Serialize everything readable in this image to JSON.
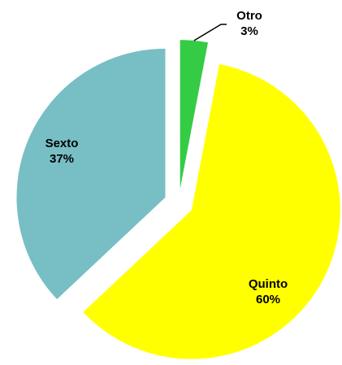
{
  "chart_data": {
    "type": "pie",
    "categories": [
      "Otro",
      "Quinto",
      "Sexto"
    ],
    "values": [
      3,
      60,
      37
    ],
    "value_labels": [
      "3%",
      "60%",
      "37%"
    ],
    "colors": [
      "#33cc44",
      "#ffff00",
      "#77bfc4"
    ]
  }
}
